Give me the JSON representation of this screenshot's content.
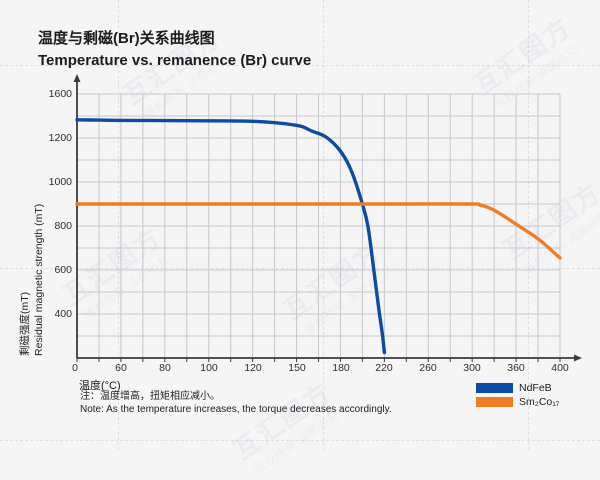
{
  "title": {
    "zh": "温度与剩磁(Br)关系曲线图",
    "en": "Temperature vs. remanence (Br) curve"
  },
  "watermark": {
    "line1": "互汇图方",
    "line2": "版权所有 盗图必究"
  },
  "chart_data": {
    "type": "line",
    "title": "Temperature vs. remanence (Br) curve",
    "x_axis": {
      "label": "温度(°C)",
      "tick_labels": [
        "0",
        "60",
        "80",
        "100",
        "120",
        "150",
        "180",
        "220",
        "260",
        "300",
        "360",
        "400"
      ],
      "tick_values": [
        0,
        60,
        80,
        100,
        120,
        150,
        180,
        220,
        260,
        300,
        360,
        400
      ]
    },
    "y_axis": {
      "label_zh": "剩磁强度(mT)",
      "label_en": "Residual magnetic strength (mT)",
      "tick_labels": [
        "1600",
        "1200",
        "1000",
        "800",
        "600",
        "400"
      ],
      "tick_values": [
        1600,
        1200,
        1000,
        800,
        600,
        400,
        0
      ]
    },
    "grid": "on",
    "legend_position": "bottom-right",
    "series": [
      {
        "name": "NdFeB",
        "color": "#0c4ba1",
        "points": [
          [
            0,
            1365
          ],
          [
            30,
            1363
          ],
          [
            60,
            1360
          ],
          [
            90,
            1357
          ],
          [
            120,
            1352
          ],
          [
            150,
            1315
          ],
          [
            160,
            1265
          ],
          [
            170,
            1210
          ],
          [
            180,
            1140
          ],
          [
            190,
            1050
          ],
          [
            200,
            900
          ],
          [
            205,
            800
          ],
          [
            210,
            615
          ],
          [
            215,
            420
          ],
          [
            218,
            230
          ],
          [
            220,
            50
          ]
        ]
      },
      {
        "name": "Sm₂Co₁₇",
        "color": "#ef7d23",
        "points": [
          [
            0,
            900
          ],
          [
            60,
            900
          ],
          [
            120,
            900
          ],
          [
            180,
            900
          ],
          [
            240,
            900
          ],
          [
            300,
            900
          ],
          [
            310,
            896
          ],
          [
            325,
            880
          ],
          [
            340,
            852
          ],
          [
            360,
            808
          ],
          [
            380,
            742
          ],
          [
            400,
            655
          ]
        ]
      }
    ],
    "note_zh": "注：温度增高，扭矩相应减小。",
    "note_en": "Note: As the temperature increases, the torque decreases accordingly."
  },
  "legend": {
    "items": [
      {
        "label": "NdFeB",
        "color": "#0c4ba1"
      },
      {
        "label": "Sm₂Co₁₇",
        "color": "#ef7d23"
      }
    ]
  },
  "colors": {
    "background": "#f5f5f6",
    "grid": "#c7c8ca",
    "axis": "#3b3b3d",
    "ndfeb": "#0c4ba1",
    "sm2co17": "#ef7d23"
  }
}
